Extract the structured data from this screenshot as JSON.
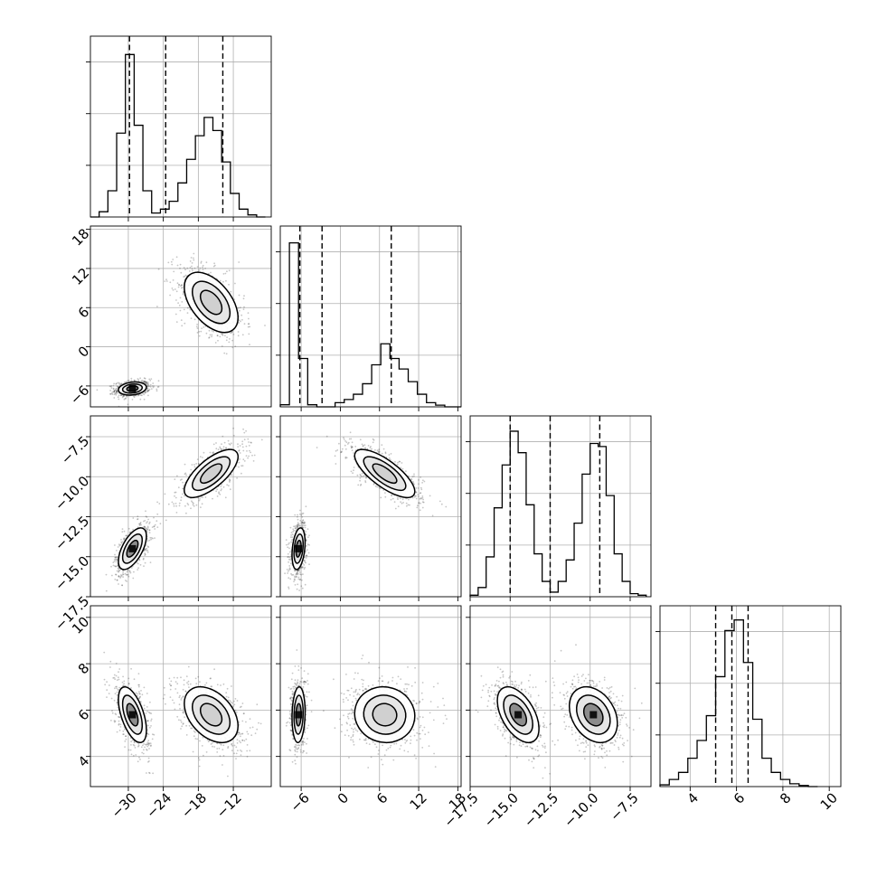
{
  "chart_data": {
    "type": "corner",
    "n_params": 4,
    "params": [
      {
        "range": [
          -36.5,
          -5.5
        ],
        "ticks": [
          -30,
          -24,
          -18,
          -12
        ],
        "tick_labels": [
          "−30",
          "−24",
          "−18",
          "−12"
        ],
        "modes": [
          {
            "mean": -29.3,
            "sd": 1.2,
            "w": 0.5
          },
          {
            "mean": -15.8,
            "sd": 2.3,
            "w": 0.5
          }
        ],
        "hist_bins": [
          -36.5,
          -35.0,
          -33.5,
          -32.0,
          -30.5,
          -29.0,
          -27.5,
          -26.0,
          -24.5,
          -23.0,
          -21.5,
          -20.0,
          -18.5,
          -17.0,
          -15.5,
          -14.0,
          -12.5,
          -11.0,
          -9.5,
          -8.0,
          -6.5
        ],
        "hist_counts": [
          0.0,
          0.2,
          1.0,
          3.2,
          6.2,
          3.5,
          1.0,
          0.15,
          0.3,
          0.6,
          1.3,
          2.2,
          3.1,
          3.8,
          3.3,
          2.1,
          0.9,
          0.3,
          0.08,
          0.0
        ],
        "hist_max": 6.9,
        "quantiles": [
          -29.8,
          -23.6,
          -13.8
        ]
      },
      {
        "range": [
          -9.2,
          18.5
        ],
        "ticks": [
          -6,
          0,
          6,
          12,
          18
        ],
        "tick_labels": [
          "−6",
          "0",
          "6",
          "12",
          "18"
        ],
        "modes": [
          {
            "mean": -6.4,
            "sd": 0.5,
            "w": 0.5
          },
          {
            "mean": 6.8,
            "sd": 2.3,
            "w": 0.5
          }
        ],
        "hist_bins": [
          -9.2,
          -7.8,
          -6.4,
          -5.0,
          -3.6,
          -2.2,
          -0.8,
          0.6,
          2.0,
          3.4,
          4.8,
          6.2,
          7.6,
          9.0,
          10.4,
          11.8,
          13.2,
          14.6,
          16.0,
          17.4,
          18.5
        ],
        "hist_counts": [
          0.1,
          7.8,
          2.3,
          0.1,
          0.0,
          0.0,
          0.2,
          0.35,
          0.6,
          1.1,
          2.0,
          3.0,
          2.3,
          1.8,
          1.2,
          0.6,
          0.2,
          0.08,
          0.0,
          0.0
        ],
        "hist_max": 8.6,
        "quantiles": [
          -6.2,
          -2.8,
          7.8
        ]
      },
      {
        "range": [
          -17.5,
          -6.2
        ],
        "ticks": [
          -17.5,
          -15.0,
          -12.5,
          -10.0,
          -7.5
        ],
        "tick_labels": [
          "−17.5",
          "−15.0",
          "−12.5",
          "−10.0",
          "−7.5"
        ],
        "modes": [
          {
            "mean": -14.5,
            "sd": 0.65,
            "w": 0.5
          },
          {
            "mean": -9.8,
            "sd": 0.75,
            "w": 0.5
          }
        ],
        "hist_bins": [
          -17.5,
          -17.0,
          -16.5,
          -16.0,
          -15.5,
          -15.0,
          -14.5,
          -14.0,
          -13.5,
          -13.0,
          -12.5,
          -12.0,
          -11.5,
          -11.0,
          -10.5,
          -10.0,
          -9.5,
          -9.0,
          -8.5,
          -8.0,
          -7.5,
          -7.0,
          -6.5
        ],
        "hist_counts": [
          0.05,
          0.3,
          1.3,
          2.9,
          4.3,
          5.4,
          4.7,
          3.0,
          1.4,
          0.5,
          0.15,
          0.5,
          1.2,
          2.4,
          4.0,
          5.0,
          4.9,
          3.3,
          1.4,
          0.5,
          0.1,
          0.05
        ],
        "hist_max": 5.9,
        "quantiles": [
          -15.0,
          -12.5,
          -9.4
        ]
      },
      {
        "range": [
          2.7,
          10.5
        ],
        "ticks": [
          4,
          6,
          8,
          10
        ],
        "tick_labels": [
          "4",
          "6",
          "8",
          "10"
        ],
        "modes": [
          {
            "mean": 5.8,
            "sd": 0.6,
            "w": 1.0
          }
        ],
        "hist_bins": [
          2.7,
          3.1,
          3.5,
          3.9,
          4.3,
          4.7,
          5.1,
          5.5,
          5.9,
          6.3,
          6.7,
          7.1,
          7.5,
          7.9,
          8.3,
          8.7,
          9.1,
          9.5
        ],
        "hist_counts": [
          0.05,
          0.2,
          0.4,
          0.8,
          1.3,
          2.0,
          3.1,
          4.4,
          4.7,
          3.5,
          1.9,
          0.8,
          0.4,
          0.2,
          0.08,
          0.03,
          0.0
        ],
        "hist_max": 5.1,
        "quantiles": [
          5.1,
          5.8,
          6.5
        ]
      }
    ],
    "pair_correlations": {
      "1-0": [
        0.2,
        -0.5
      ],
      "2-0": [
        0.6,
        0.7
      ],
      "2-1": [
        0.3,
        -0.75
      ],
      "3-0": [
        -0.55,
        -0.4
      ],
      "3-1": [
        0.1,
        -0.05
      ],
      "3-2": [
        -0.5,
        -0.3
      ]
    },
    "density_grid": "on",
    "hist_y_ticks": "unlabeled",
    "contours": "3 levels per mode, black solid",
    "quantile_lines": "dashed black"
  }
}
